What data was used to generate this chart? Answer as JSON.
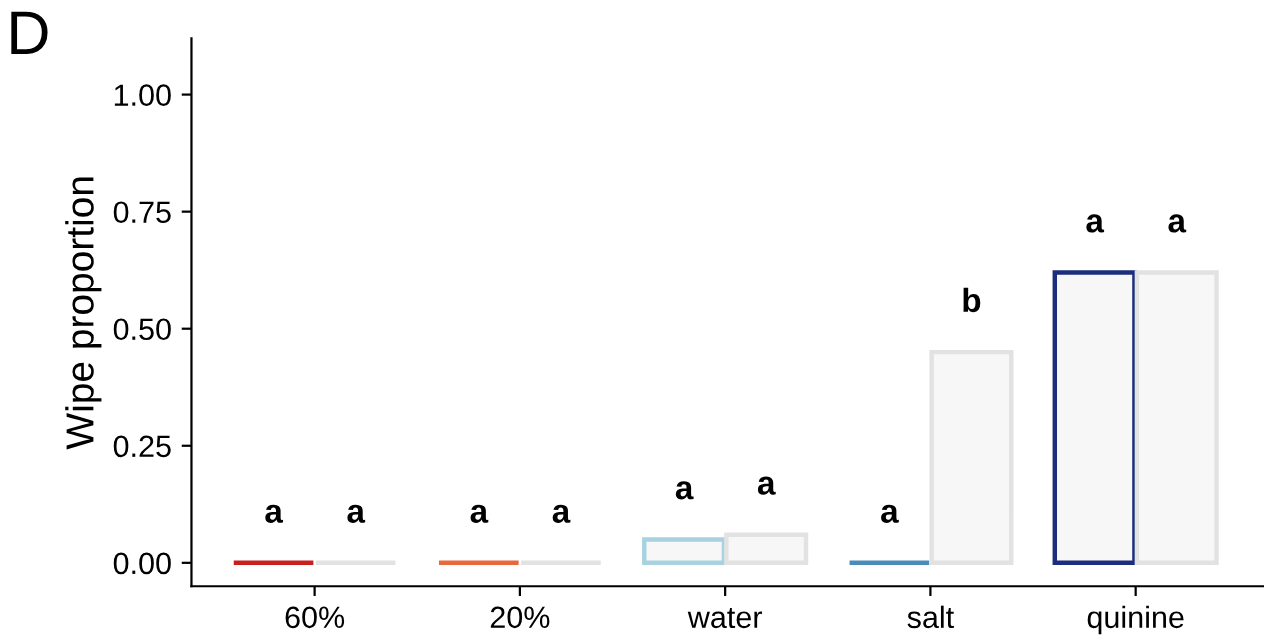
{
  "chart_data": {
    "type": "bar",
    "ylabel": "Wipe proportion",
    "categories": [
      "60%",
      "20%",
      "water",
      "salt",
      "quinine"
    ],
    "series": [
      {
        "colors": [
          "#c8201e",
          "#e86a3c",
          "#a9d2e0",
          "#4a8bb8",
          "#1b2d7c"
        ],
        "values": [
          0,
          0,
          0.05,
          0,
          0.62
        ]
      },
      {
        "colors": [
          "#e2e2e2",
          "#e2e2e2",
          "#e2e2e2",
          "#e2e2e2",
          "#e2e2e2"
        ],
        "values": [
          0,
          0,
          0.06,
          0.45,
          0.62
        ]
      }
    ],
    "ylim": [
      -0.05,
      1.12
    ],
    "yticks": [
      {
        "value": 0,
        "label": "0.00"
      },
      {
        "value": 0.25,
        "label": "0.25"
      },
      {
        "value": 0.5,
        "label": "0.50"
      },
      {
        "value": 0.75,
        "label": "0.75"
      },
      {
        "value": 1,
        "label": "1.00"
      }
    ],
    "grid": false,
    "legend": false,
    "title": "D",
    "annotations": [
      "a",
      "a",
      "a",
      "a",
      "a",
      "a",
      "a",
      "b",
      "a",
      "a"
    ]
  }
}
